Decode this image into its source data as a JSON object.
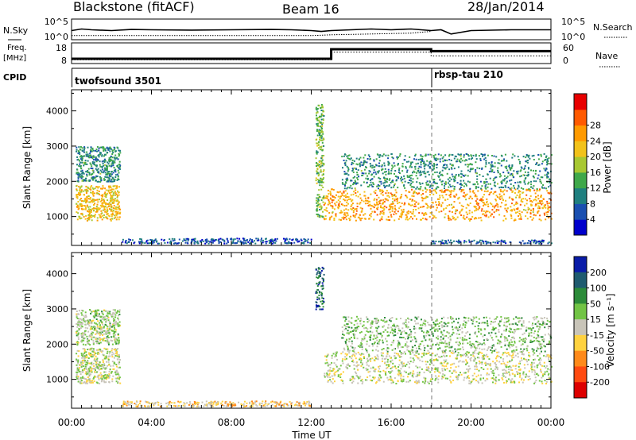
{
  "header": {
    "station": "Blackstone (fitACF)",
    "beam": "Beam 16",
    "date": "28/Jan/2014"
  },
  "colors": {
    "axis": "#000000",
    "background": "#ffffff",
    "ground_scatter": "#b8b4a8"
  },
  "chart_data": [
    {
      "type": "line",
      "panel": "sky-noise",
      "left_label": "N.Sky",
      "right_label": "N.Search",
      "left_ticks": [
        "10^5",
        "10^0"
      ],
      "right_ticks": [
        "10^5",
        "10^0"
      ],
      "x_unit": "hours UT",
      "series": [
        {
          "style": "solid",
          "x": [
            0,
            0.5,
            1,
            2,
            3,
            4,
            6,
            8,
            10,
            11,
            12,
            12.5,
            13,
            14,
            15,
            16,
            17,
            18,
            18.5,
            19,
            20,
            22,
            24
          ],
          "y": [
            0.55,
            0.45,
            0.5,
            0.55,
            0.48,
            0.5,
            0.52,
            0.5,
            0.48,
            0.5,
            0.55,
            0.6,
            0.55,
            0.5,
            0.45,
            0.5,
            0.45,
            0.55,
            0.5,
            0.75,
            0.55,
            0.5,
            0.5
          ]
        },
        {
          "style": "dotted",
          "x": [
            0,
            1,
            3,
            6,
            9,
            12,
            13,
            15,
            17,
            18
          ],
          "y": [
            0.85,
            0.85,
            0.85,
            0.85,
            0.85,
            0.85,
            0.8,
            0.75,
            0.7,
            0.6
          ]
        }
      ]
    },
    {
      "type": "line",
      "panel": "frequency-nave",
      "left_label": "Freq.",
      "left_unit": "[MHz]",
      "right_label": "Nave",
      "left_ticks": [
        "18",
        "8"
      ],
      "right_ticks": [
        "60",
        "0"
      ],
      "x_unit": "hours UT",
      "series": [
        {
          "name": "Freq.",
          "style": "thick",
          "x": [
            0,
            13,
            13,
            18,
            18,
            24
          ],
          "y": [
            10.5,
            10.5,
            15.5,
            15.5,
            14.5,
            14.5
          ]
        },
        {
          "name": "Nave",
          "style": "dotted",
          "x": [
            0,
            13,
            13,
            18,
            18,
            24
          ],
          "y": [
            10,
            10,
            14,
            14,
            12,
            12
          ]
        }
      ]
    },
    {
      "type": "table",
      "panel": "cpid",
      "label": "CPID",
      "x_unit": "hours UT",
      "segments": [
        {
          "name": "twofsound 3501",
          "start": 0,
          "end": 18
        },
        {
          "name": "rbsp-tau 210",
          "start": 18,
          "end": 24
        }
      ]
    },
    {
      "type": "heatmap",
      "panel": "power",
      "ylabel": "Slant Range [km]",
      "yticks": [
        1000,
        2000,
        3000,
        4000
      ],
      "ylim": [
        180,
        4600
      ],
      "xlim": [
        0,
        24
      ],
      "colorbar": {
        "label": "Power [dB]",
        "ticks": [
          4,
          8,
          12,
          16,
          20,
          24,
          28
        ],
        "colors": [
          "#0000cc",
          "#1a4fb0",
          "#1f7f7f",
          "#3fa84a",
          "#a8c832",
          "#f2c21a",
          "#ff9a00",
          "#ff5a00",
          "#e80000"
        ]
      },
      "regions": [
        {
          "x": [
            0.2,
            2.4
          ],
          "y": [
            900,
            1900
          ],
          "value": 20
        },
        {
          "x": [
            0.2,
            2.4
          ],
          "y": [
            2000,
            3000
          ],
          "value": 10
        },
        {
          "x": [
            2.5,
            12.0
          ],
          "y": [
            250,
            400
          ],
          "value": 6
        },
        {
          "x": [
            12.2,
            12.6
          ],
          "y": [
            1000,
            4200
          ],
          "value": 14
        },
        {
          "x": [
            12.6,
            24
          ],
          "y": [
            900,
            1800
          ],
          "value": 22
        },
        {
          "x": [
            13.5,
            24
          ],
          "y": [
            1800,
            2800
          ],
          "value": 10
        },
        {
          "x": [
            18,
            24
          ],
          "y": [
            250,
            350
          ],
          "value": 6
        }
      ]
    },
    {
      "type": "heatmap",
      "panel": "velocity",
      "ylabel": "Slant Range [km]",
      "yticks": [
        1000,
        2000,
        3000,
        4000
      ],
      "ylim": [
        180,
        4600
      ],
      "xlim": [
        0,
        24
      ],
      "xlabel": "Time UT",
      "xticks": [
        "00:00",
        "04:00",
        "08:00",
        "12:00",
        "16:00",
        "20:00",
        "00:00"
      ],
      "colorbar": {
        "label": "Velocity [m s⁻¹]",
        "ticks": [
          "200",
          "100",
          "50",
          "15",
          "-15",
          "-50",
          "-100",
          "-200"
        ],
        "colors": [
          "#0a1ca8",
          "#1f5b6f",
          "#2c8b39",
          "#72c445",
          "#c8c4b8",
          "#ffd23f",
          "#ff8a1a",
          "#ff4a10",
          "#dd0000"
        ]
      },
      "regions": [
        {
          "x": [
            0.2,
            2.4
          ],
          "y": [
            900,
            1900
          ],
          "value": 10
        },
        {
          "x": [
            0.2,
            2.4
          ],
          "y": [
            2000,
            3000
          ],
          "value": 20
        },
        {
          "x": [
            2.5,
            12.0
          ],
          "y": [
            250,
            400
          ],
          "value": -40
        },
        {
          "x": [
            12.2,
            12.6
          ],
          "y": [
            3000,
            4200
          ],
          "value": 150
        },
        {
          "x": [
            12.6,
            24
          ],
          "y": [
            900,
            1800
          ],
          "value": 0
        },
        {
          "x": [
            13.5,
            24
          ],
          "y": [
            1800,
            2800
          ],
          "value": 40
        }
      ]
    }
  ]
}
